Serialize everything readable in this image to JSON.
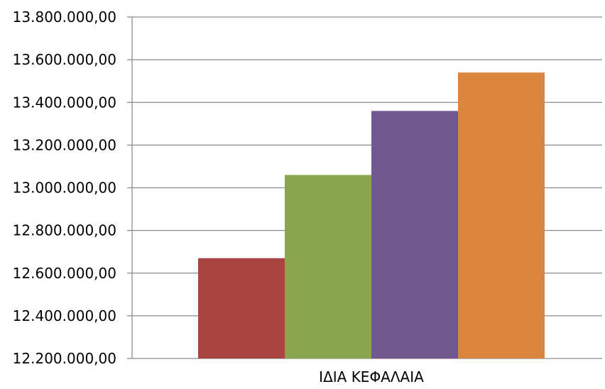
{
  "chart_data": {
    "type": "bar",
    "title": "",
    "xlabel": "",
    "ylabel": "",
    "categories": [
      "ΙΔΙΑ ΚΕΦΑΛΑΙΑ"
    ],
    "series": [
      {
        "values": [
          12670000
        ],
        "color": "#a94442"
      },
      {
        "values": [
          13060000
        ],
        "color": "#89a54e"
      },
      {
        "values": [
          13360000
        ],
        "color": "#71588f"
      },
      {
        "values": [
          13540000
        ],
        "color": "#db843d"
      }
    ],
    "ylim": [
      12200000,
      13800000
    ],
    "yticks": [
      12200000,
      12400000,
      12600000,
      12800000,
      13000000,
      13200000,
      13400000,
      13600000,
      13800000
    ],
    "ytick_labels": [
      "12.200.000,00",
      "12.400.000,00",
      "12.600.000,00",
      "12.800.000,00",
      "13.000.000,00",
      "13.200.000,00",
      "13.400.000,00",
      "13.600.000,00",
      "13.800.000,00"
    ],
    "grid": true,
    "legend": "none"
  }
}
